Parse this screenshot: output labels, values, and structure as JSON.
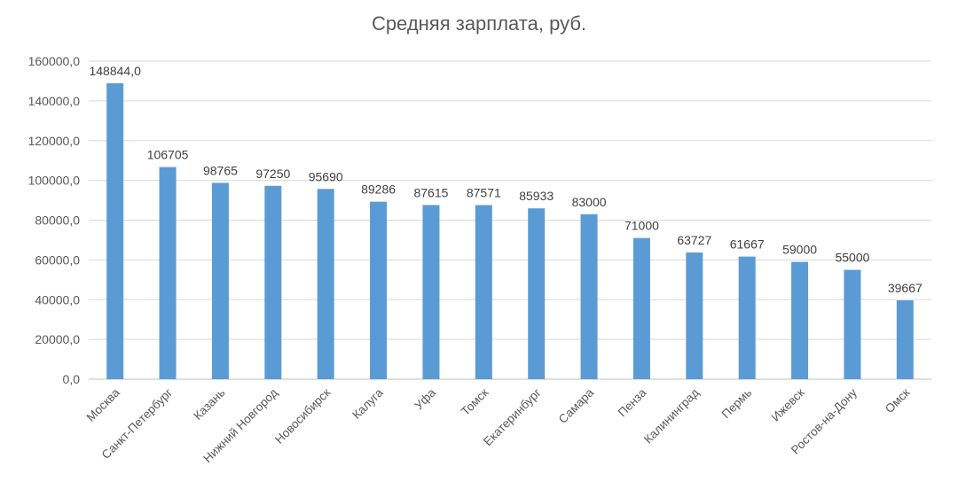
{
  "chart_data": {
    "type": "bar",
    "title": "Средняя зарплата, руб.",
    "xlabel": "",
    "ylabel": "",
    "ylim": [
      0,
      160000
    ],
    "yticks": [
      0,
      20000,
      40000,
      60000,
      80000,
      100000,
      120000,
      140000,
      160000
    ],
    "ytick_labels": [
      "0,0",
      "20000,0",
      "40000,0",
      "60000,0",
      "80000,0",
      "100000,0",
      "120000,0",
      "140000,0",
      "160000,0"
    ],
    "grid": true,
    "legend": "none",
    "bar_color": "#5b9bd5",
    "categories": [
      "Москва",
      "Санкт-Петербург",
      "Казань",
      "Нижний Новгород",
      "Новосибирск",
      "Калуга",
      "Уфа",
      "Томск",
      "Екатеринбург",
      "Самара",
      "Пенза",
      "Калининград",
      "Пермь",
      "Ижевск",
      "Ростов-на-Дону",
      "Омск"
    ],
    "values": [
      148844,
      106705,
      98765,
      97250,
      95690,
      89286,
      87615,
      87571,
      85933,
      83000,
      71000,
      63727,
      61667,
      59000,
      55000,
      39667
    ],
    "data_labels": [
      "148844,0",
      "106705",
      "98765",
      "97250",
      "95690",
      "89286",
      "87615",
      "87571",
      "85933",
      "83000",
      "71000",
      "63727",
      "61667",
      "59000",
      "55000",
      "39667"
    ]
  }
}
